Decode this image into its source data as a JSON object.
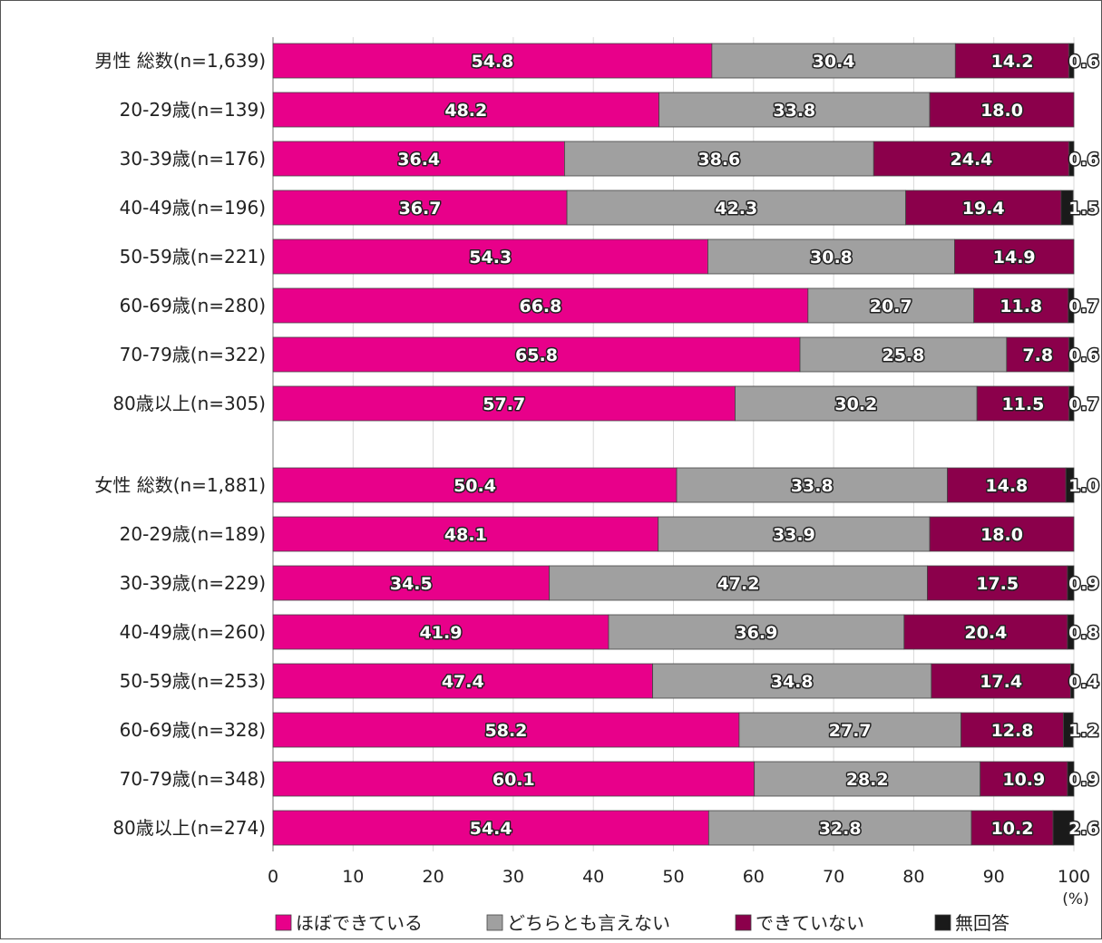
{
  "chart_data": {
    "type": "bar",
    "orientation": "horizontal",
    "stacked": true,
    "xlim": [
      0,
      100
    ],
    "x_ticks": [
      "0",
      "10",
      "20",
      "30",
      "40",
      "50",
      "60",
      "70",
      "80",
      "90",
      "100"
    ],
    "x_unit": "(%)",
    "grid": true,
    "legend_position": "bottom",
    "categories": [
      "男性 総数(n=1,639)",
      "20-29歳(n=139)",
      "30-39歳(n=176)",
      "40-49歳(n=196)",
      "50-59歳(n=221)",
      "60-69歳(n=280)",
      "70-79歳(n=322)",
      "80歳以上(n=305)",
      "女性 総数(n=1,881)",
      "20-29歳(n=189)",
      "30-39歳(n=229)",
      "40-49歳(n=260)",
      "50-59歳(n=253)",
      "60-69歳(n=328)",
      "70-79歳(n=348)",
      "80歳以上(n=274)"
    ],
    "series": [
      {
        "name": "ほぼできている",
        "color": "#e8008a",
        "values": [
          54.8,
          48.2,
          36.4,
          36.7,
          54.3,
          66.8,
          65.8,
          57.7,
          50.4,
          48.1,
          34.5,
          41.9,
          47.4,
          58.2,
          60.1,
          54.4
        ]
      },
      {
        "name": "どちらとも言えない",
        "color": "#a0a0a0",
        "values": [
          30.4,
          33.8,
          38.6,
          42.3,
          30.8,
          20.7,
          25.8,
          30.2,
          33.8,
          33.9,
          47.2,
          36.9,
          34.8,
          27.7,
          28.2,
          32.8
        ]
      },
      {
        "name": "できていない",
        "color": "#8b004b",
        "values": [
          14.2,
          18.0,
          24.4,
          19.4,
          14.9,
          11.8,
          7.8,
          11.5,
          14.8,
          18.0,
          17.5,
          20.4,
          17.4,
          12.8,
          10.9,
          10.2
        ]
      },
      {
        "name": "無回答",
        "color": "#1a1a1a",
        "values": [
          0.6,
          null,
          0.6,
          1.5,
          null,
          0.7,
          0.6,
          0.7,
          1.0,
          null,
          0.9,
          0.8,
          0.4,
          1.2,
          0.9,
          2.6
        ]
      }
    ]
  }
}
